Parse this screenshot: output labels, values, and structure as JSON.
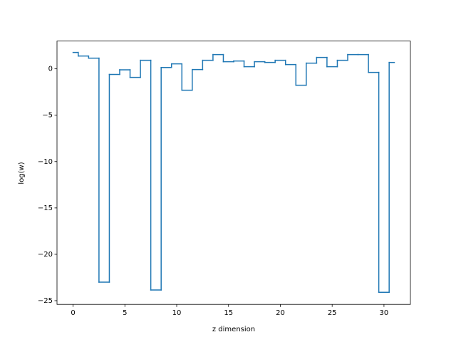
{
  "chart_data": {
    "type": "step",
    "xlabel": "z dimension",
    "ylabel": "log(w)",
    "x": [
      0,
      1,
      2,
      3,
      4,
      5,
      6,
      7,
      8,
      9,
      10,
      11,
      12,
      13,
      14,
      15,
      16,
      17,
      18,
      19,
      20,
      21,
      22,
      23,
      24,
      25,
      26,
      27,
      28,
      29,
      30,
      31
    ],
    "series": [
      {
        "color": "#1f77b4",
        "values": [
          1.77,
          1.38,
          1.15,
          -23.0,
          -0.6,
          -0.1,
          -0.92,
          0.92,
          -23.85,
          0.15,
          0.54,
          -2.3,
          -0.08,
          0.92,
          1.54,
          0.77,
          0.85,
          0.23,
          0.77,
          0.69,
          0.92,
          0.46,
          -1.77,
          0.62,
          1.23,
          0.23,
          0.92,
          1.54,
          1.54,
          -0.38,
          -24.1,
          0.69
        ]
      }
    ],
    "xlim": [
      -1.55,
      32.55
    ],
    "ylim": [
      -25.4,
      3.0
    ],
    "xticks": [
      0,
      5,
      10,
      15,
      20,
      25,
      30
    ],
    "yticks": [
      {
        "value": -25,
        "label": "−25"
      },
      {
        "value": -20,
        "label": "−20"
      },
      {
        "value": -15,
        "label": "−15"
      },
      {
        "value": -10,
        "label": "−10"
      },
      {
        "value": -5,
        "label": "−5"
      },
      0
    ]
  }
}
